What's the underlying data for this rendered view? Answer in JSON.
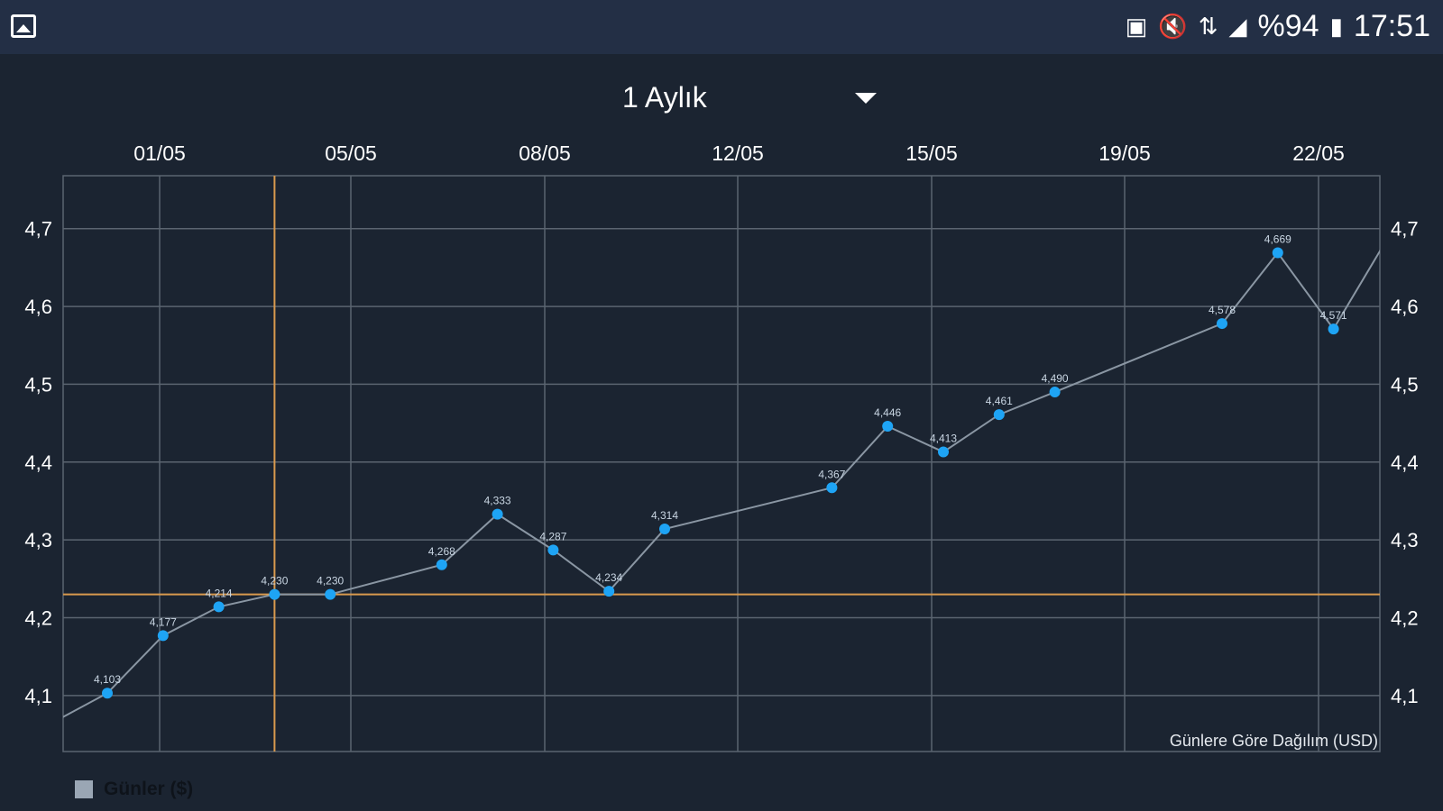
{
  "status_bar": {
    "left_icon": "gallery-icon",
    "icons": [
      "sim-icon",
      "mute-icon",
      "hplus-data-icon",
      "signal-icon"
    ],
    "battery": "%94",
    "battery_icon": "battery-charging-icon",
    "time": "17:51"
  },
  "period_selector": {
    "selected": "1 Aylık"
  },
  "chart_data": {
    "type": "line",
    "x_tick_labels": [
      "01/05",
      "05/05",
      "08/05",
      "12/05",
      "15/05",
      "19/05",
      "22/05"
    ],
    "y_tick_labels": [
      "4,1",
      "4,2",
      "4,3",
      "4,4",
      "4,5",
      "4,6",
      "4,7"
    ],
    "y_ticks": [
      4.1,
      4.2,
      4.3,
      4.4,
      4.5,
      4.6,
      4.7
    ],
    "ylim": [
      4.028,
      4.768
    ],
    "grid": true,
    "points": [
      {
        "date": "30/04",
        "value": 4.103,
        "label": "4,103"
      },
      {
        "date": "01/05",
        "value": 4.177,
        "label": "4,177"
      },
      {
        "date": "02/05",
        "value": 4.214,
        "label": "4,214"
      },
      {
        "date": "03/05",
        "value": 4.23,
        "label": "4,230"
      },
      {
        "date": "04/05",
        "value": 4.23,
        "label": "4,230"
      },
      {
        "date": "06/05",
        "value": 4.268,
        "label": "4,268"
      },
      {
        "date": "07/05",
        "value": 4.333,
        "label": "4,333"
      },
      {
        "date": "08/05",
        "value": 4.287,
        "label": "4,287"
      },
      {
        "date": "09/05",
        "value": 4.234,
        "label": "4,234"
      },
      {
        "date": "10/05",
        "value": 4.314,
        "label": "4,314"
      },
      {
        "date": "13/05",
        "value": 4.367,
        "label": "4,367"
      },
      {
        "date": "14/05",
        "value": 4.446,
        "label": "4,446"
      },
      {
        "date": "15/05",
        "value": 4.413,
        "label": "4,413"
      },
      {
        "date": "16/05",
        "value": 4.461,
        "label": "4,461"
      },
      {
        "date": "17/05",
        "value": 4.49,
        "label": "4,490"
      },
      {
        "date": "20/05",
        "value": 4.578,
        "label": "4,578"
      },
      {
        "date": "21/05",
        "value": 4.669,
        "label": "4,669"
      },
      {
        "date": "22/05",
        "value": 4.571,
        "label": "4,571"
      }
    ],
    "highlight": {
      "date": "03/05",
      "value": 4.23
    },
    "description": "Günlere Göre Dağılım (USD)",
    "legend": {
      "label": "Günler ($)",
      "position": "bottom-left"
    },
    "colors": {
      "line": "#8a96a3",
      "point": "#1ea4f5",
      "highlight": "#d99a4e",
      "grid": "#5b6470",
      "background": "#1b2431"
    }
  }
}
